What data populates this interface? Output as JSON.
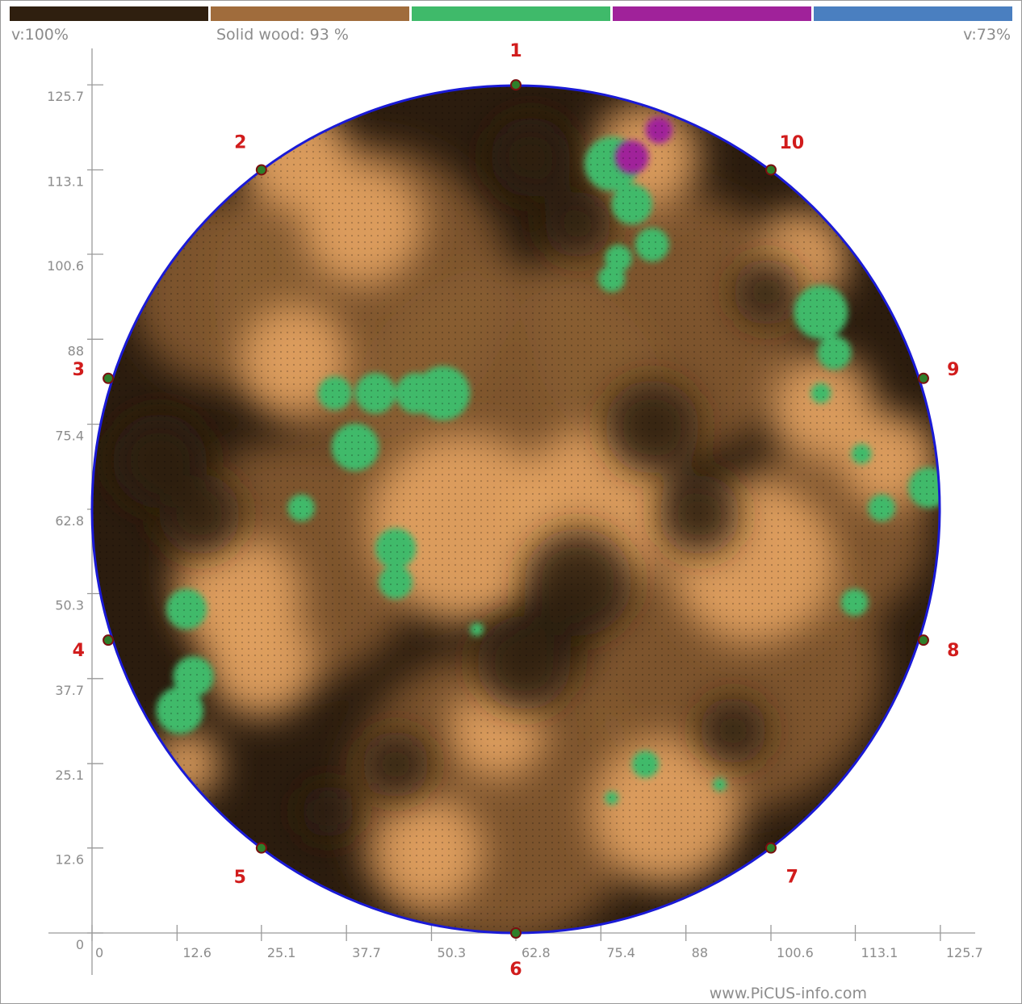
{
  "header": {
    "velocity_left": "v:100%",
    "solid_wood_label": "Solid wood: 93 %",
    "velocity_right": "v:73%"
  },
  "color_scale": [
    "#2f1f0f",
    "#a06c3c",
    "#3fba6a",
    "#a0229a",
    "#4a7fc0"
  ],
  "footer": {
    "site": "www.PiCUS-info.com"
  },
  "chart_data": {
    "type": "heatmap",
    "title": "",
    "xlabel": "",
    "ylabel": "",
    "xlim": [
      0,
      125.7
    ],
    "ylim": [
      0,
      125.7
    ],
    "x_ticks": [
      "0",
      "12.6",
      "25.1",
      "37.7",
      "50.3",
      "62.8",
      "75.4",
      "88",
      "100.6",
      "113.1",
      "125.7"
    ],
    "y_ticks": [
      "0",
      "12.6",
      "25.1",
      "37.7",
      "50.3",
      "62.8",
      "75.4",
      "88",
      "100.6",
      "113.1",
      "125.7"
    ],
    "x_tick_values": [
      0,
      12.6,
      25.1,
      37.7,
      50.3,
      62.8,
      75.4,
      88,
      100.6,
      113.1,
      125.7
    ],
    "y_tick_values": [
      0,
      12.6,
      25.1,
      37.7,
      50.3,
      62.8,
      75.4,
      88,
      100.6,
      113.1,
      125.7
    ],
    "cross_section": {
      "center": [
        62.8,
        62.8
      ],
      "radius": 62.8
    },
    "sensors": [
      {
        "label": "1",
        "x": 62.8,
        "y": 125.7
      },
      {
        "label": "2",
        "x": 25.1,
        "y": 113.1
      },
      {
        "label": "3",
        "x": 2.4,
        "y": 82.2
      },
      {
        "label": "4",
        "x": 2.4,
        "y": 43.4
      },
      {
        "label": "5",
        "x": 25.1,
        "y": 12.6
      },
      {
        "label": "6",
        "x": 62.8,
        "y": 0
      },
      {
        "label": "7",
        "x": 100.6,
        "y": 12.6
      },
      {
        "label": "8",
        "x": 123.2,
        "y": 43.4
      },
      {
        "label": "9",
        "x": 123.2,
        "y": 82.2
      },
      {
        "label": "10",
        "x": 100.6,
        "y": 113.1
      }
    ],
    "zones": {
      "colors": {
        "sound_dark": "#2b1c0e",
        "medium": "#8b5e33",
        "light": "#e0a060",
        "decay": "#3fba6a",
        "severe": "#a0229a"
      },
      "light_areas": [
        {
          "x": 75,
          "y": 63,
          "r": 12
        },
        {
          "x": 55,
          "y": 60,
          "r": 14
        },
        {
          "x": 40,
          "y": 105,
          "r": 9
        },
        {
          "x": 30,
          "y": 85,
          "r": 8
        },
        {
          "x": 22,
          "y": 50,
          "r": 9
        },
        {
          "x": 25,
          "y": 40,
          "r": 8
        },
        {
          "x": 98,
          "y": 55,
          "r": 12
        },
        {
          "x": 108,
          "y": 78,
          "r": 8
        },
        {
          "x": 118,
          "y": 70,
          "r": 7
        },
        {
          "x": 105,
          "y": 100,
          "r": 7
        },
        {
          "x": 85,
          "y": 18,
          "r": 11
        },
        {
          "x": 50,
          "y": 12,
          "r": 8
        },
        {
          "x": 82,
          "y": 115,
          "r": 8
        },
        {
          "x": 30,
          "y": 115,
          "r": 8
        },
        {
          "x": 60,
          "y": 30,
          "r": 7
        },
        {
          "x": 14,
          "y": 25,
          "r": 5
        }
      ],
      "dark_areas": [
        {
          "x": 72,
          "y": 52,
          "r": 8
        },
        {
          "x": 64,
          "y": 40,
          "r": 7
        },
        {
          "x": 83,
          "y": 75,
          "r": 7
        },
        {
          "x": 90,
          "y": 62,
          "r": 6
        },
        {
          "x": 10,
          "y": 70,
          "r": 7
        },
        {
          "x": 16,
          "y": 62,
          "r": 6
        },
        {
          "x": 65,
          "y": 115,
          "r": 6
        },
        {
          "x": 72,
          "y": 105,
          "r": 5
        },
        {
          "x": 45,
          "y": 25,
          "r": 5
        },
        {
          "x": 95,
          "y": 30,
          "r": 5
        },
        {
          "x": 100,
          "y": 95,
          "r": 5
        },
        {
          "x": 35,
          "y": 18,
          "r": 4
        }
      ],
      "decay_areas": [
        {
          "x": 77,
          "y": 114,
          "r": 4
        },
        {
          "x": 80,
          "y": 108,
          "r": 3
        },
        {
          "x": 83,
          "y": 102,
          "r": 2.5
        },
        {
          "x": 77,
          "y": 97,
          "r": 2
        },
        {
          "x": 52,
          "y": 80,
          "r": 4
        },
        {
          "x": 48,
          "y": 80,
          "r": 3
        },
        {
          "x": 42,
          "y": 80,
          "r": 3
        },
        {
          "x": 39,
          "y": 72,
          "r": 3.5
        },
        {
          "x": 36,
          "y": 80,
          "r": 2.5
        },
        {
          "x": 45,
          "y": 57,
          "r": 3
        },
        {
          "x": 45,
          "y": 52,
          "r": 2.5
        },
        {
          "x": 31,
          "y": 63,
          "r": 2
        },
        {
          "x": 14,
          "y": 48,
          "r": 3
        },
        {
          "x": 15,
          "y": 38,
          "r": 3
        },
        {
          "x": 13,
          "y": 33,
          "r": 3.5
        },
        {
          "x": 108,
          "y": 92,
          "r": 4
        },
        {
          "x": 110,
          "y": 86,
          "r": 2.5
        },
        {
          "x": 108,
          "y": 80,
          "r": 1.5
        },
        {
          "x": 124,
          "y": 66,
          "r": 3
        },
        {
          "x": 117,
          "y": 63,
          "r": 2
        },
        {
          "x": 113,
          "y": 49,
          "r": 2
        },
        {
          "x": 114,
          "y": 71,
          "r": 1.5
        },
        {
          "x": 82,
          "y": 25,
          "r": 2
        },
        {
          "x": 93,
          "y": 22,
          "r": 1
        },
        {
          "x": 77,
          "y": 20,
          "r": 1
        },
        {
          "x": 57,
          "y": 45,
          "r": 1
        },
        {
          "x": 78,
          "y": 100,
          "r": 2
        }
      ],
      "severe_areas": [
        {
          "x": 80,
          "y": 115,
          "r": 2.5
        },
        {
          "x": 84,
          "y": 119,
          "r": 2
        }
      ]
    }
  }
}
